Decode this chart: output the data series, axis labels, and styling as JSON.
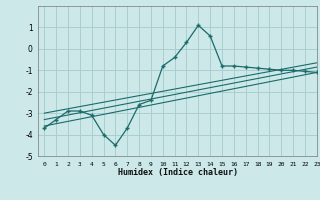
{
  "xlabel": "Humidex (Indice chaleur)",
  "ylabel": "",
  "bg_color": "#cce8e8",
  "grid_color": "#aacfcf",
  "line_color": "#1a6b6b",
  "xlim": [
    -0.5,
    23
  ],
  "ylim": [
    -5,
    2
  ],
  "yticks": [
    -5,
    -4,
    -3,
    -2,
    -1,
    0,
    1
  ],
  "xticks": [
    0,
    1,
    2,
    3,
    4,
    5,
    6,
    7,
    8,
    9,
    10,
    11,
    12,
    13,
    14,
    15,
    16,
    17,
    18,
    19,
    20,
    21,
    22,
    23
  ],
  "main_x": [
    0,
    1,
    2,
    3,
    4,
    5,
    6,
    7,
    8,
    9,
    10,
    11,
    12,
    13,
    14,
    15,
    16,
    17,
    18,
    19,
    20,
    21,
    22,
    23
  ],
  "main_y": [
    -3.7,
    -3.3,
    -2.9,
    -2.9,
    -3.1,
    -4.0,
    -4.5,
    -3.7,
    -2.6,
    -2.4,
    -0.8,
    -0.4,
    0.3,
    1.1,
    0.6,
    -0.8,
    -0.8,
    -0.85,
    -0.9,
    -0.95,
    -1.0,
    -1.0,
    -1.05,
    -1.1
  ],
  "line2_x": [
    0,
    23
  ],
  "line2_y": [
    -3.3,
    -0.85
  ],
  "line3_x": [
    0,
    23
  ],
  "line3_y": [
    -3.0,
    -0.65
  ],
  "line4_x": [
    0,
    23
  ],
  "line4_y": [
    -3.6,
    -1.1
  ]
}
